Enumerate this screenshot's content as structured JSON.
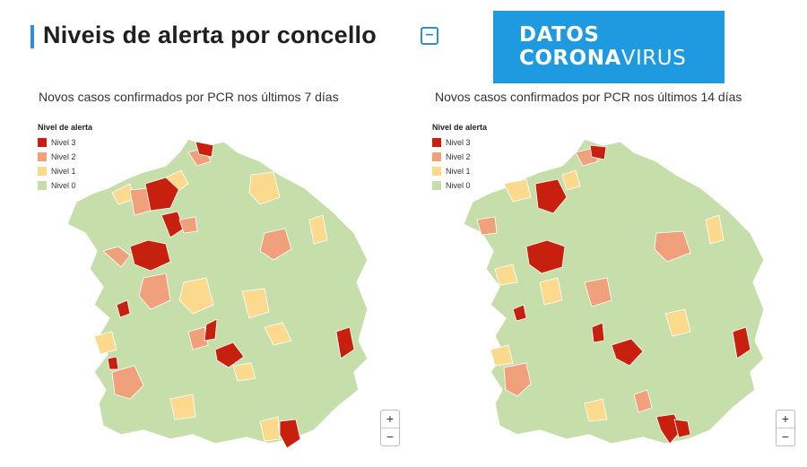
{
  "header": {
    "title": "Niveis de alerta por concello",
    "collapse_label": "−"
  },
  "logo": {
    "line1": "DATOS",
    "line2_bold": "CORONA",
    "line2_rest": "VIRUS"
  },
  "legend": {
    "title": "Nivel de alerta",
    "items": [
      {
        "label": "Nivel 3",
        "color": "#c8200f"
      },
      {
        "label": "Nivel 2",
        "color": "#f0a17c"
      },
      {
        "label": "Nivel 1",
        "color": "#fbd98d"
      },
      {
        "label": "Nivel 0",
        "color": "#c5deaa"
      }
    ]
  },
  "maps": [
    {
      "subtitle": "Novos casos confirmados por PCR nos últimos 7 días",
      "zoom_in": "+",
      "zoom_out": "−"
    },
    {
      "subtitle": "Novos casos confirmados por PCR nos últimos 14 días",
      "zoom_in": "+",
      "zoom_out": "−"
    }
  ],
  "colors": {
    "accent": "#2f8fd6",
    "logo_bg": "#1e9ae0",
    "border": "#ffffff"
  }
}
